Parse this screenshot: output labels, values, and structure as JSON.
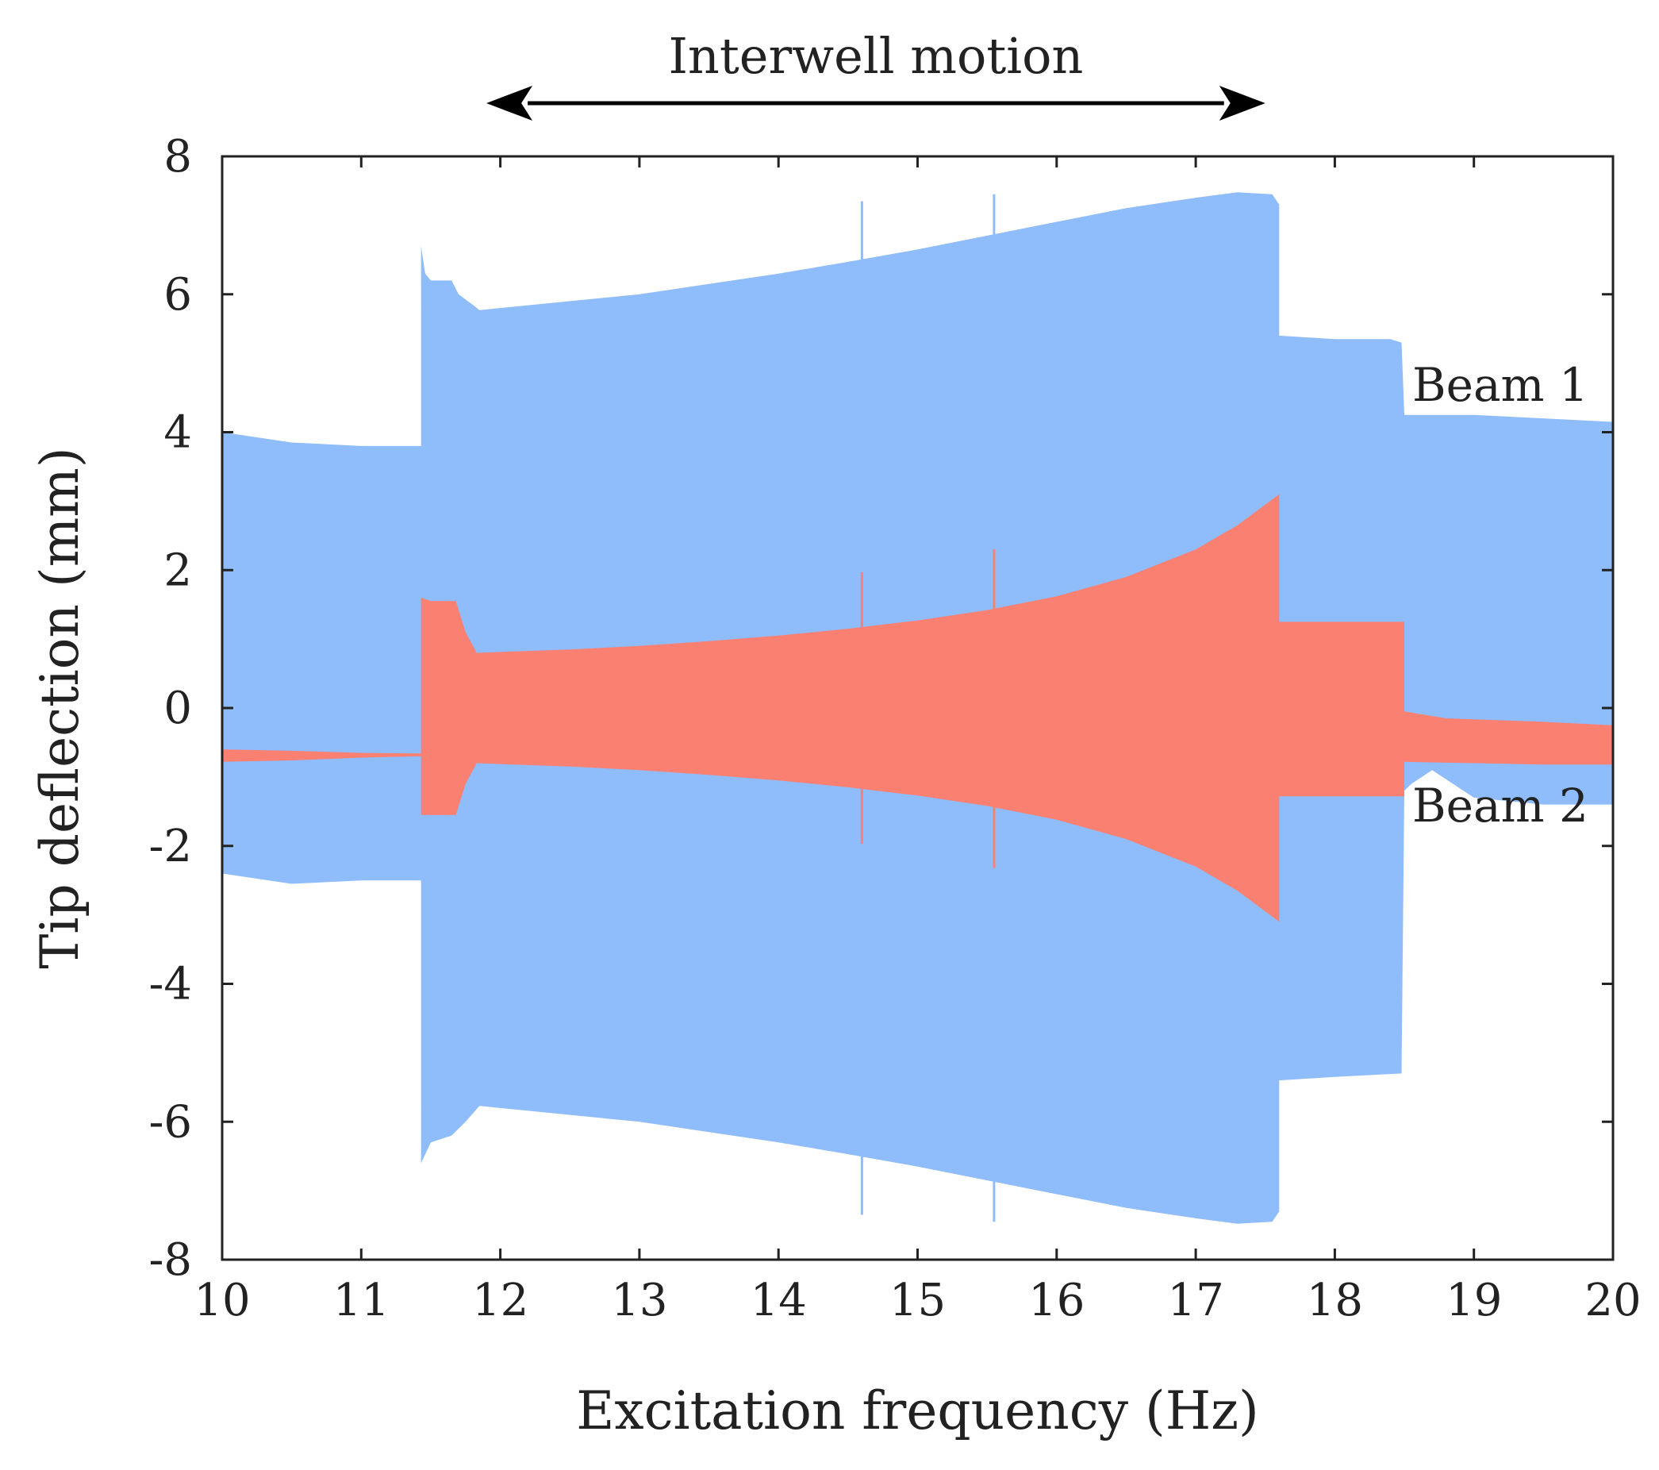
{
  "chart_data": {
    "type": "area",
    "title": "",
    "xlabel": "Excitation frequency  (Hz)",
    "ylabel": "Tip deflection  (mm)",
    "xlim": [
      10,
      20
    ],
    "ylim": [
      -8,
      8
    ],
    "xticks": [
      10,
      11,
      12,
      13,
      14,
      15,
      16,
      17,
      18,
      19,
      20
    ],
    "yticks": [
      8,
      6,
      4,
      2,
      0,
      -2,
      -4,
      -6,
      -8
    ],
    "annotation": {
      "text": "Interwell motion",
      "x_start": 11.9,
      "x_end": 17.5,
      "arrow": "double"
    },
    "series": [
      {
        "name": "Beam 1",
        "color": "#8fbcfb",
        "label": "Beam 1",
        "upper": [
          [
            10.0,
            4.0
          ],
          [
            10.5,
            3.85
          ],
          [
            11.0,
            3.8
          ],
          [
            11.43,
            3.8
          ],
          [
            11.43,
            6.7
          ],
          [
            11.46,
            6.3
          ],
          [
            11.5,
            6.2
          ],
          [
            11.65,
            6.2
          ],
          [
            11.7,
            6.0
          ],
          [
            11.8,
            5.85
          ],
          [
            11.85,
            5.77
          ],
          [
            12.5,
            5.9
          ],
          [
            13.0,
            6.0
          ],
          [
            13.5,
            6.15
          ],
          [
            14.0,
            6.3
          ],
          [
            14.5,
            6.47
          ],
          [
            15.0,
            6.65
          ],
          [
            15.5,
            6.85
          ],
          [
            16.0,
            7.05
          ],
          [
            16.5,
            7.25
          ],
          [
            17.0,
            7.4
          ],
          [
            17.3,
            7.48
          ],
          [
            17.55,
            7.45
          ],
          [
            17.6,
            7.3
          ],
          [
            17.6,
            5.4
          ],
          [
            18.0,
            5.35
          ],
          [
            18.4,
            5.35
          ],
          [
            18.48,
            5.3
          ],
          [
            18.5,
            4.25
          ],
          [
            19.0,
            4.25
          ],
          [
            19.5,
            4.2
          ],
          [
            20.0,
            4.15
          ]
        ],
        "lower": [
          [
            10.0,
            -2.4
          ],
          [
            10.5,
            -2.55
          ],
          [
            11.0,
            -2.5
          ],
          [
            11.43,
            -2.5
          ],
          [
            11.43,
            -6.6
          ],
          [
            11.5,
            -6.3
          ],
          [
            11.65,
            -6.2
          ],
          [
            11.75,
            -6.0
          ],
          [
            11.85,
            -5.77
          ],
          [
            12.5,
            -5.9
          ],
          [
            13.0,
            -6.0
          ],
          [
            13.5,
            -6.15
          ],
          [
            14.0,
            -6.3
          ],
          [
            14.5,
            -6.47
          ],
          [
            15.0,
            -6.65
          ],
          [
            15.5,
            -6.85
          ],
          [
            16.0,
            -7.05
          ],
          [
            16.5,
            -7.25
          ],
          [
            17.0,
            -7.4
          ],
          [
            17.3,
            -7.48
          ],
          [
            17.55,
            -7.45
          ],
          [
            17.6,
            -7.3
          ],
          [
            17.6,
            -5.4
          ],
          [
            18.0,
            -5.35
          ],
          [
            18.48,
            -5.3
          ],
          [
            18.5,
            -1.2
          ],
          [
            18.55,
            -1.1
          ],
          [
            18.7,
            -0.9
          ],
          [
            19.0,
            -1.3
          ],
          [
            19.5,
            -1.4
          ],
          [
            20.0,
            -1.4
          ]
        ],
        "spikes": [
          {
            "x": 14.6,
            "ymin": -7.35,
            "ymax": 7.35
          },
          {
            "x": 15.55,
            "ymin": -7.45,
            "ymax": 7.45
          }
        ]
      },
      {
        "name": "Beam 2",
        "color": "#fa8072",
        "label": "Beam 2",
        "upper": [
          [
            10.0,
            -0.6
          ],
          [
            10.5,
            -0.62
          ],
          [
            11.0,
            -0.65
          ],
          [
            11.43,
            -0.66
          ],
          [
            11.43,
            1.6
          ],
          [
            11.5,
            1.55
          ],
          [
            11.68,
            1.55
          ],
          [
            11.75,
            1.1
          ],
          [
            11.83,
            0.8
          ],
          [
            12.5,
            0.85
          ],
          [
            13.0,
            0.9
          ],
          [
            13.5,
            0.97
          ],
          [
            14.0,
            1.05
          ],
          [
            14.5,
            1.15
          ],
          [
            15.0,
            1.27
          ],
          [
            15.5,
            1.42
          ],
          [
            16.0,
            1.62
          ],
          [
            16.5,
            1.9
          ],
          [
            17.0,
            2.3
          ],
          [
            17.3,
            2.65
          ],
          [
            17.6,
            3.1
          ],
          [
            17.6,
            1.25
          ],
          [
            18.0,
            1.25
          ],
          [
            18.5,
            1.25
          ],
          [
            18.5,
            -0.05
          ],
          [
            18.8,
            -0.15
          ],
          [
            19.5,
            -0.2
          ],
          [
            20.0,
            -0.25
          ]
        ],
        "lower": [
          [
            10.0,
            -0.78
          ],
          [
            10.5,
            -0.76
          ],
          [
            11.0,
            -0.72
          ],
          [
            11.43,
            -0.7
          ],
          [
            11.43,
            -1.55
          ],
          [
            11.5,
            -1.55
          ],
          [
            11.68,
            -1.55
          ],
          [
            11.75,
            -1.1
          ],
          [
            11.83,
            -0.8
          ],
          [
            12.5,
            -0.85
          ],
          [
            13.0,
            -0.9
          ],
          [
            13.5,
            -0.97
          ],
          [
            14.0,
            -1.05
          ],
          [
            14.5,
            -1.15
          ],
          [
            15.0,
            -1.27
          ],
          [
            15.5,
            -1.42
          ],
          [
            16.0,
            -1.62
          ],
          [
            16.5,
            -1.9
          ],
          [
            17.0,
            -2.3
          ],
          [
            17.3,
            -2.65
          ],
          [
            17.6,
            -3.1
          ],
          [
            17.6,
            -1.28
          ],
          [
            18.0,
            -1.28
          ],
          [
            18.5,
            -1.28
          ],
          [
            18.5,
            -0.78
          ],
          [
            19.0,
            -0.8
          ],
          [
            19.5,
            -0.82
          ],
          [
            20.0,
            -0.82
          ]
        ],
        "spikes": [
          {
            "x": 14.6,
            "ymin": -1.97,
            "ymax": 1.97
          },
          {
            "x": 15.55,
            "ymin": -2.32,
            "ymax": 2.3
          }
        ]
      }
    ]
  },
  "colors": {
    "axis": "#222222",
    "beam1": "#8fbcfb",
    "beam2": "#fa8072"
  }
}
